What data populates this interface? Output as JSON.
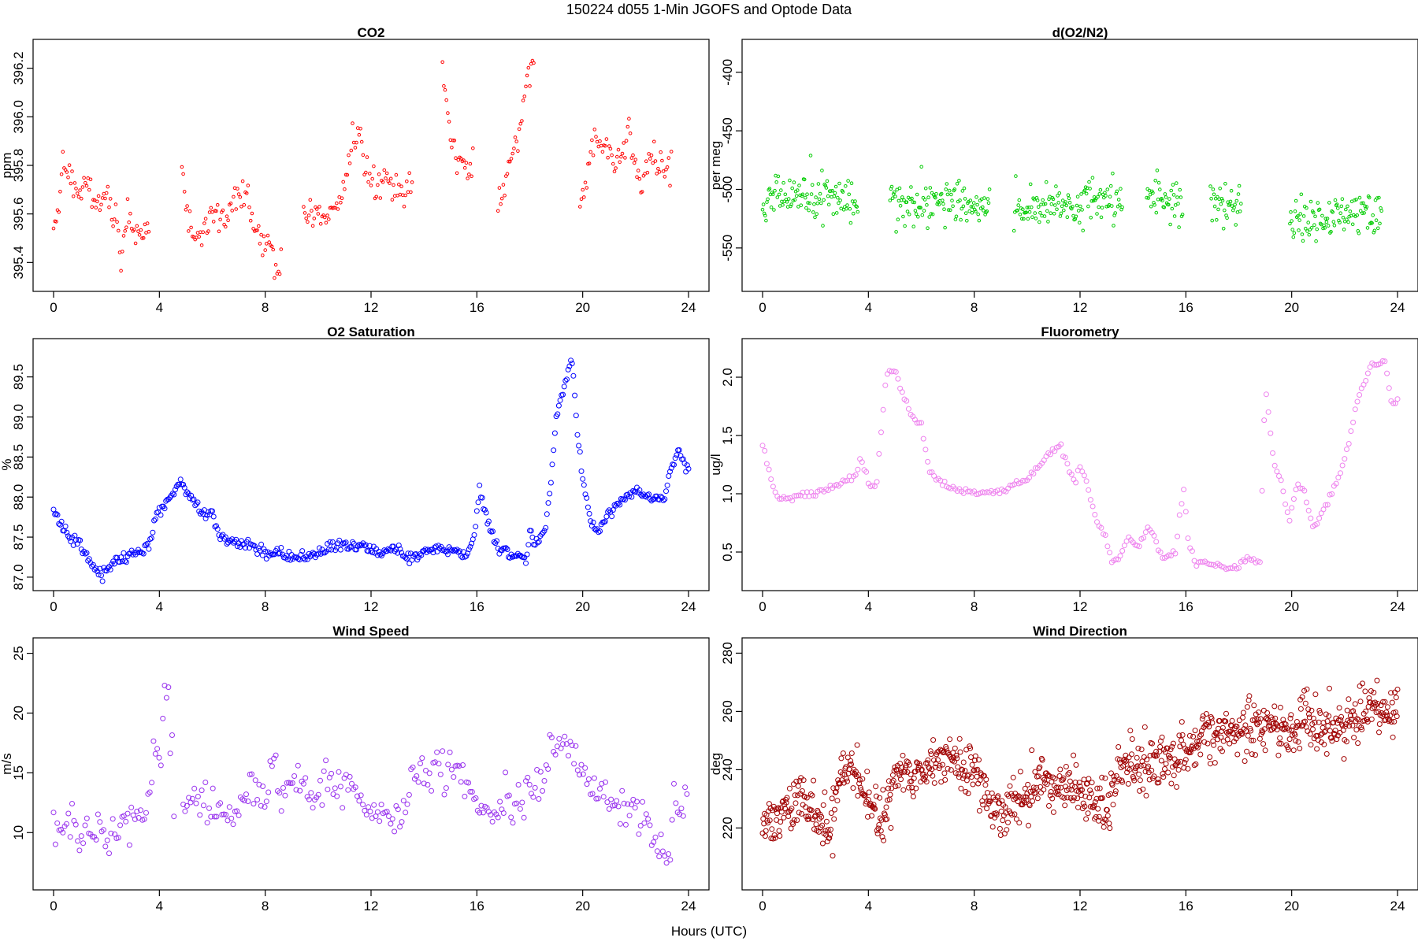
{
  "figure": {
    "title": "150224   d055   1-Min  JGOFS and Optode Data",
    "xlabel": "Hours (UTC)"
  },
  "chart_data": [
    {
      "id": "co2",
      "type": "scatter",
      "title": "CO2",
      "ylabel": "ppm",
      "color": "#ff0000",
      "xlim": [
        0,
        24
      ],
      "xticks": [
        0,
        4,
        8,
        12,
        16,
        20,
        24
      ],
      "ylim": [
        395.32,
        396.28
      ],
      "yticks": [
        395.4,
        395.6,
        395.8,
        396.0,
        396.2
      ],
      "ytick_labels": [
        "395.4",
        "395.6",
        "395.8",
        "396.0",
        "396.2"
      ],
      "gaps": [
        [
          3.6,
          4.8
        ],
        [
          8.6,
          9.4
        ],
        [
          13.6,
          14.7
        ],
        [
          15.9,
          16.8
        ],
        [
          18.2,
          19.9
        ],
        [
          23.4,
          24.1
        ]
      ],
      "x_start": 0.0,
      "x_end": 23.4,
      "x_step": 0.05,
      "knots": [
        [
          0,
          395.53
        ],
        [
          0.15,
          395.56
        ],
        [
          0.35,
          395.84
        ],
        [
          0.6,
          395.76
        ],
        [
          0.9,
          395.7
        ],
        [
          1.3,
          395.73
        ],
        [
          1.6,
          395.63
        ],
        [
          2.0,
          395.68
        ],
        [
          2.3,
          395.58
        ],
        [
          2.5,
          395.46
        ],
        [
          2.8,
          395.57
        ],
        [
          3.1,
          395.52
        ],
        [
          3.5,
          395.5
        ],
        [
          4.8,
          395.88
        ],
        [
          5.0,
          395.62
        ],
        [
          5.3,
          395.52
        ],
        [
          5.6,
          395.51
        ],
        [
          6.0,
          395.62
        ],
        [
          6.4,
          395.58
        ],
        [
          6.8,
          395.65
        ],
        [
          7.3,
          395.67
        ],
        [
          7.6,
          395.52
        ],
        [
          8.0,
          395.51
        ],
        [
          8.3,
          395.44
        ],
        [
          8.5,
          395.33
        ],
        [
          9.4,
          395.64
        ],
        [
          9.8,
          395.58
        ],
        [
          10.2,
          395.58
        ],
        [
          10.5,
          395.63
        ],
        [
          11.0,
          395.72
        ],
        [
          11.4,
          395.92
        ],
        [
          11.8,
          395.8
        ],
        [
          12.2,
          395.7
        ],
        [
          12.6,
          395.76
        ],
        [
          13.0,
          395.68
        ],
        [
          13.5,
          395.7
        ],
        [
          14.7,
          396.22
        ],
        [
          14.9,
          395.98
        ],
        [
          15.1,
          395.85
        ],
        [
          15.5,
          395.8
        ],
        [
          15.9,
          395.77
        ],
        [
          16.8,
          395.62
        ],
        [
          17.2,
          395.82
        ],
        [
          17.6,
          395.95
        ],
        [
          17.9,
          396.16
        ],
        [
          18.1,
          396.25
        ],
        [
          19.9,
          395.58
        ],
        [
          20.2,
          395.8
        ],
        [
          20.5,
          395.93
        ],
        [
          20.8,
          395.85
        ],
        [
          21.3,
          395.82
        ],
        [
          21.7,
          395.92
        ],
        [
          22.2,
          395.74
        ],
        [
          22.6,
          395.82
        ],
        [
          23.0,
          395.8
        ],
        [
          23.4,
          395.78
        ]
      ],
      "noise": 0.035,
      "marker_radius": 1.8
    },
    {
      "id": "do2n2",
      "type": "scatter",
      "title": "d(O2/N2)",
      "ylabel": "per meg",
      "color": "#00cc00",
      "xlim": [
        0,
        24
      ],
      "xticks": [
        0,
        4,
        8,
        12,
        16,
        20,
        24
      ],
      "ylim": [
        -579,
        -380
      ],
      "yticks": [
        -550,
        -500,
        -450,
        -400
      ],
      "ytick_labels": [
        "-550",
        "-500",
        "-450",
        "-400"
      ],
      "gaps": [
        [
          3.6,
          4.8
        ],
        [
          8.6,
          9.5
        ],
        [
          13.6,
          14.5
        ],
        [
          15.9,
          16.9
        ],
        [
          18.1,
          19.9
        ],
        [
          23.5,
          24.1
        ]
      ],
      "x_start": 0.0,
      "x_end": 23.4,
      "x_step": 0.033,
      "knots": [
        [
          0,
          -506
        ],
        [
          4,
          -508
        ],
        [
          4.8,
          -507
        ],
        [
          8.5,
          -514
        ],
        [
          9.5,
          -516
        ],
        [
          13.5,
          -508
        ],
        [
          14.5,
          -505
        ],
        [
          15.9,
          -515
        ],
        [
          16.9,
          -512
        ],
        [
          18.1,
          -512
        ],
        [
          19.9,
          -524
        ],
        [
          23.4,
          -520
        ]
      ],
      "noise": 9.5,
      "marker_radius": 1.8
    },
    {
      "id": "o2sat",
      "type": "scatter",
      "title": "O2 Saturation",
      "ylabel": "%",
      "color": "#0000ff",
      "xlim": [
        0,
        24
      ],
      "xticks": [
        0,
        4,
        8,
        12,
        16,
        20,
        24
      ],
      "ylim": [
        86.95,
        89.86
      ],
      "yticks": [
        87.0,
        87.5,
        88.0,
        88.5,
        89.0,
        89.5
      ],
      "ytick_labels": [
        "87.0",
        "87.5",
        "88.0",
        "88.5",
        "89.0",
        "89.5"
      ],
      "gaps": [],
      "x_start": 0.0,
      "x_end": 24.0,
      "x_step": 0.05,
      "knots": [
        [
          0,
          87.82
        ],
        [
          0.5,
          87.55
        ],
        [
          1.0,
          87.42
        ],
        [
          1.5,
          87.12
        ],
        [
          1.8,
          87.02
        ],
        [
          2.2,
          87.18
        ],
        [
          3.0,
          87.3
        ],
        [
          3.6,
          87.4
        ],
        [
          3.9,
          87.8
        ],
        [
          4.3,
          87.95
        ],
        [
          4.8,
          88.18
        ],
        [
          5.2,
          88.0
        ],
        [
          5.5,
          87.82
        ],
        [
          6.0,
          87.8
        ],
        [
          6.3,
          87.5
        ],
        [
          6.8,
          87.45
        ],
        [
          7.5,
          87.38
        ],
        [
          8.0,
          87.3
        ],
        [
          8.5,
          87.3
        ],
        [
          9.0,
          87.25
        ],
        [
          9.5,
          87.25
        ],
        [
          10.0,
          87.32
        ],
        [
          10.5,
          87.36
        ],
        [
          11.0,
          87.38
        ],
        [
          11.8,
          87.4
        ],
        [
          12.2,
          87.32
        ],
        [
          12.8,
          87.32
        ],
        [
          13.5,
          87.25
        ],
        [
          14.0,
          87.3
        ],
        [
          14.5,
          87.35
        ],
        [
          15.0,
          87.35
        ],
        [
          15.6,
          87.25
        ],
        [
          15.9,
          87.5
        ],
        [
          16.1,
          88.15
        ],
        [
          16.4,
          87.7
        ],
        [
          16.8,
          87.35
        ],
        [
          17.3,
          87.3
        ],
        [
          17.9,
          87.22
        ],
        [
          18.0,
          87.6
        ],
        [
          18.2,
          87.4
        ],
        [
          18.6,
          87.6
        ],
        [
          18.8,
          88.2
        ],
        [
          19.0,
          89.0
        ],
        [
          19.3,
          89.4
        ],
        [
          19.6,
          89.7
        ],
        [
          19.8,
          88.8
        ],
        [
          20.0,
          88.2
        ],
        [
          20.3,
          87.7
        ],
        [
          20.6,
          87.55
        ],
        [
          21.0,
          87.8
        ],
        [
          21.5,
          87.98
        ],
        [
          22.0,
          88.05
        ],
        [
          22.5,
          87.98
        ],
        [
          23.1,
          88.0
        ],
        [
          23.4,
          88.4
        ],
        [
          23.6,
          88.55
        ],
        [
          24.0,
          88.35
        ]
      ],
      "noise": 0.035,
      "marker_radius": 3
    },
    {
      "id": "fluoro",
      "type": "scatter",
      "title": "Fluorometry",
      "ylabel": "ug/l",
      "color": "#ee82ee",
      "xlim": [
        0,
        24
      ],
      "xticks": [
        0,
        4,
        8,
        12,
        16,
        20,
        24
      ],
      "ylim": [
        0.25,
        2.25
      ],
      "yticks": [
        0.5,
        1.0,
        1.5,
        2.0
      ],
      "ytick_labels": [
        "0.5",
        "1.0",
        "1.5",
        "2.0"
      ],
      "gaps": [],
      "x_start": 0.0,
      "x_end": 24.0,
      "x_step": 0.08,
      "knots": [
        [
          0,
          1.42
        ],
        [
          0.3,
          1.15
        ],
        [
          0.6,
          0.96
        ],
        [
          1.0,
          0.97
        ],
        [
          2.0,
          1.0
        ],
        [
          3.0,
          1.1
        ],
        [
          3.5,
          1.15
        ],
        [
          3.7,
          1.3
        ],
        [
          4.0,
          1.1
        ],
        [
          4.3,
          1.05
        ],
        [
          4.5,
          1.6
        ],
        [
          4.7,
          2.05
        ],
        [
          5.0,
          2.05
        ],
        [
          5.3,
          1.85
        ],
        [
          5.7,
          1.65
        ],
        [
          6.0,
          1.6
        ],
        [
          6.3,
          1.2
        ],
        [
          7.0,
          1.05
        ],
        [
          8.0,
          1.0
        ],
        [
          9.0,
          1.02
        ],
        [
          10.0,
          1.12
        ],
        [
          11.0,
          1.38
        ],
        [
          11.3,
          1.4
        ],
        [
          11.6,
          1.2
        ],
        [
          11.8,
          1.1
        ],
        [
          12.0,
          1.25
        ],
        [
          12.3,
          1.05
        ],
        [
          12.6,
          0.8
        ],
        [
          13.0,
          0.6
        ],
        [
          13.2,
          0.42
        ],
        [
          13.5,
          0.45
        ],
        [
          13.8,
          0.62
        ],
        [
          14.2,
          0.55
        ],
        [
          14.6,
          0.72
        ],
        [
          15.0,
          0.5
        ],
        [
          15.3,
          0.45
        ],
        [
          15.6,
          0.5
        ],
        [
          15.9,
          1.05
        ],
        [
          16.1,
          0.6
        ],
        [
          16.3,
          0.42
        ],
        [
          17.0,
          0.4
        ],
        [
          17.5,
          0.38
        ],
        [
          18.0,
          0.37
        ],
        [
          18.3,
          0.45
        ],
        [
          18.8,
          0.4
        ],
        [
          19.0,
          1.95
        ],
        [
          19.3,
          1.3
        ],
        [
          19.6,
          1.1
        ],
        [
          19.9,
          0.75
        ],
        [
          20.2,
          1.1
        ],
        [
          20.5,
          1.0
        ],
        [
          20.8,
          0.7
        ],
        [
          21.3,
          0.9
        ],
        [
          21.7,
          1.1
        ],
        [
          22.0,
          1.3
        ],
        [
          22.5,
          1.8
        ],
        [
          23.0,
          2.1
        ],
        [
          23.5,
          2.15
        ],
        [
          23.8,
          1.75
        ],
        [
          24.0,
          1.8
        ]
      ],
      "noise": 0.015,
      "marker_radius": 3
    },
    {
      "id": "windspeed",
      "type": "scatter",
      "title": "Wind Speed",
      "ylabel": "m/s",
      "color": "#9933ee",
      "xlim": [
        0,
        24
      ],
      "xticks": [
        0,
        4,
        8,
        12,
        16,
        20,
        24
      ],
      "ylim": [
        6.0,
        25.5
      ],
      "yticks": [
        10,
        15,
        20,
        25
      ],
      "ytick_labels": [
        "10",
        "15",
        "20",
        "25"
      ],
      "gaps": [
        [
          4.6,
          4.85
        ]
      ],
      "x_start": 0.0,
      "x_end": 24.0,
      "x_step": 0.07,
      "knots": [
        [
          0,
          10.5
        ],
        [
          1.0,
          10.2
        ],
        [
          2.0,
          9.5
        ],
        [
          2.6,
          10.4
        ],
        [
          3.0,
          11.0
        ],
        [
          3.5,
          12.0
        ],
        [
          3.8,
          16.5
        ],
        [
          4.1,
          17.5
        ],
        [
          4.3,
          22.5
        ],
        [
          4.5,
          16.0
        ],
        [
          4.6,
          8.0
        ],
        [
          4.9,
          12.0
        ],
        [
          5.5,
          12.5
        ],
        [
          6.5,
          11.5
        ],
        [
          7.0,
          12.0
        ],
        [
          7.5,
          13.5
        ],
        [
          8.0,
          12.5
        ],
        [
          8.3,
          16.5
        ],
        [
          8.6,
          13.0
        ],
        [
          9.0,
          14.5
        ],
        [
          9.5,
          13.5
        ],
        [
          10.0,
          12.0
        ],
        [
          10.3,
          15.0
        ],
        [
          10.8,
          14.0
        ],
        [
          11.3,
          13.0
        ],
        [
          11.8,
          12.0
        ],
        [
          12.3,
          11.5
        ],
        [
          12.8,
          11.0
        ],
        [
          13.3,
          12.0
        ],
        [
          13.6,
          15.5
        ],
        [
          14.5,
          15.5
        ],
        [
          15.0,
          15.0
        ],
        [
          15.5,
          14.5
        ],
        [
          15.9,
          12.5
        ],
        [
          16.5,
          12.0
        ],
        [
          17.0,
          12.5
        ],
        [
          17.5,
          12.0
        ],
        [
          18.0,
          13.0
        ],
        [
          18.5,
          14.0
        ],
        [
          18.8,
          18.5
        ],
        [
          19.0,
          16.5
        ],
        [
          19.4,
          18.0
        ],
        [
          19.7,
          16.0
        ],
        [
          20.0,
          14.0
        ],
        [
          20.5,
          13.5
        ],
        [
          21.0,
          13.0
        ],
        [
          21.5,
          12.5
        ],
        [
          22.0,
          12.0
        ],
        [
          22.5,
          10.5
        ],
        [
          23.0,
          8.5
        ],
        [
          23.2,
          7.5
        ],
        [
          23.4,
          12.0
        ],
        [
          24.0,
          13.5
        ]
      ],
      "noise": 0.9,
      "marker_radius": 3
    },
    {
      "id": "winddir",
      "type": "scatter",
      "title": "Wind Direction",
      "ylabel": "deg",
      "color": "#a00000",
      "xlim": [
        0,
        24
      ],
      "xticks": [
        0,
        4,
        8,
        12,
        16,
        20,
        24
      ],
      "ylim": [
        202,
        282
      ],
      "yticks": [
        220,
        240,
        260,
        280
      ],
      "ytick_labels": [
        "220",
        "240",
        "260",
        "280"
      ],
      "gaps": [],
      "x_start": 0.0,
      "x_end": 24.0,
      "x_step": 0.025,
      "knots": [
        [
          0,
          222
        ],
        [
          1.0,
          226
        ],
        [
          1.5,
          230
        ],
        [
          2.0,
          225
        ],
        [
          2.5,
          218
        ],
        [
          3.0,
          240
        ],
        [
          3.5,
          240
        ],
        [
          4.0,
          228
        ],
        [
          4.5,
          222
        ],
        [
          5.0,
          238
        ],
        [
          6.0,
          240
        ],
        [
          7.0,
          244
        ],
        [
          8.0,
          238
        ],
        [
          9.0,
          226
        ],
        [
          10.0,
          228
        ],
        [
          10.5,
          238
        ],
        [
          11.0,
          234
        ],
        [
          12.0,
          232
        ],
        [
          12.5,
          230
        ],
        [
          13.0,
          224
        ],
        [
          13.5,
          240
        ],
        [
          14.5,
          242
        ],
        [
          15.5,
          243
        ],
        [
          16.5,
          250
        ],
        [
          17.0,
          252
        ],
        [
          18.0,
          252
        ],
        [
          18.5,
          256
        ],
        [
          19.0,
          256
        ],
        [
          20.0,
          252
        ],
        [
          20.5,
          258
        ],
        [
          21.0,
          252
        ],
        [
          22.0,
          257
        ],
        [
          23.0,
          260
        ],
        [
          24.0,
          262
        ]
      ],
      "noise": 4.5,
      "marker_radius": 3
    }
  ]
}
